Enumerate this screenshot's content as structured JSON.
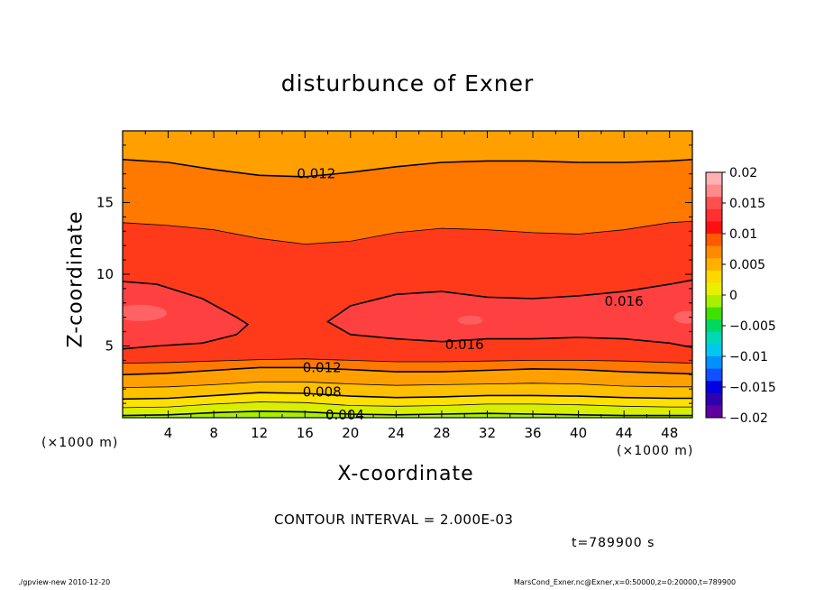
{
  "chart_data": {
    "type": "contour",
    "title": "disturbunce of Exner",
    "xlabel": "X-coordinate",
    "ylabel": "Z-coordinate",
    "x_unit": "(×1000 m)",
    "y_unit": "(×1000 m)",
    "xlim": [
      0,
      50
    ],
    "ylim": [
      0,
      20
    ],
    "x_ticks": [
      4,
      8,
      12,
      16,
      20,
      24,
      28,
      32,
      36,
      40,
      44,
      48
    ],
    "y_ticks": [
      5,
      10,
      15
    ],
    "contour_interval_text": "CONTOUR INTERVAL = 2.000E-03",
    "contour_labels": [
      {
        "value": "0.012",
        "x": 17,
        "z": 17.0
      },
      {
        "value": "0.016",
        "x": 44,
        "z": 8.1
      },
      {
        "value": "0.016",
        "x": 30,
        "z": 5.1
      },
      {
        "value": "0.012",
        "x": 17.5,
        "z": 3.5
      },
      {
        "value": "0.008",
        "x": 17.5,
        "z": 1.8
      },
      {
        "value": "0.004",
        "x": 19.5,
        "z": 0.2
      }
    ],
    "contours": [
      {
        "level": 0.004,
        "x": [
          0,
          4,
          8,
          12,
          16,
          20,
          24,
          28,
          32,
          36,
          40,
          44,
          48,
          50
        ],
        "z": [
          0.15,
          0.2,
          0.35,
          0.45,
          0.4,
          0.25,
          0.2,
          0.25,
          0.3,
          0.25,
          0.2,
          0.15,
          0.15,
          0.15
        ]
      },
      {
        "level": 0.006,
        "x": [
          0,
          4,
          8,
          12,
          16,
          20,
          24,
          28,
          32,
          36,
          40,
          44,
          48,
          50
        ],
        "z": [
          0.7,
          0.75,
          0.95,
          1.1,
          1.05,
          0.85,
          0.8,
          0.85,
          0.95,
          0.95,
          0.9,
          0.8,
          0.75,
          0.75
        ]
      },
      {
        "level": 0.008,
        "x": [
          0,
          4,
          8,
          12,
          16,
          20,
          24,
          28,
          32,
          36,
          40,
          44,
          48,
          50
        ],
        "z": [
          1.3,
          1.35,
          1.55,
          1.75,
          1.7,
          1.5,
          1.4,
          1.45,
          1.55,
          1.55,
          1.5,
          1.4,
          1.35,
          1.35
        ]
      },
      {
        "level": 0.01,
        "x": [
          0,
          4,
          8,
          12,
          16,
          20,
          24,
          28,
          32,
          36,
          40,
          44,
          48,
          50
        ],
        "z": [
          2.1,
          2.15,
          2.3,
          2.5,
          2.5,
          2.35,
          2.25,
          2.3,
          2.35,
          2.4,
          2.35,
          2.2,
          2.15,
          2.15
        ]
      },
      {
        "level": 0.012,
        "x": [
          0,
          4,
          8,
          12,
          16,
          20,
          24,
          28,
          32,
          36,
          40,
          44,
          48,
          50
        ],
        "z": [
          3.0,
          3.1,
          3.3,
          3.5,
          3.5,
          3.35,
          3.2,
          3.2,
          3.3,
          3.4,
          3.35,
          3.2,
          3.1,
          3.05
        ]
      },
      {
        "level": 0.014,
        "x": [
          0,
          4,
          8,
          12,
          16,
          20,
          24,
          28,
          32,
          36,
          40,
          44,
          48,
          50
        ],
        "z": [
          3.8,
          3.85,
          3.95,
          4.05,
          4.1,
          4.0,
          3.9,
          3.9,
          3.95,
          4.0,
          4.0,
          3.95,
          3.85,
          3.8
        ]
      },
      {
        "level": 0.014,
        "x": [
          0,
          4,
          8,
          12,
          16,
          20,
          24,
          28,
          32,
          36,
          40,
          44,
          48,
          50
        ],
        "z": [
          13.6,
          13.4,
          13.1,
          12.5,
          12.1,
          12.3,
          12.9,
          13.2,
          13.1,
          12.9,
          12.8,
          13.1,
          13.6,
          13.7
        ]
      },
      {
        "level": 0.012,
        "x": [
          0,
          4,
          8,
          12,
          16,
          20,
          24,
          28,
          32,
          36,
          40,
          44,
          48,
          50
        ],
        "z": [
          18.0,
          17.8,
          17.3,
          16.9,
          16.8,
          17.1,
          17.5,
          17.8,
          17.9,
          17.9,
          17.8,
          17.8,
          17.9,
          18.0
        ]
      }
    ],
    "closed_contours_016": [
      {
        "x": [
          0,
          3,
          7,
          10,
          11,
          10,
          7,
          3,
          0
        ],
        "z": [
          9.5,
          9.3,
          8.3,
          7.0,
          6.5,
          5.8,
          5.2,
          5.0,
          4.8
        ]
      },
      {
        "x": [
          50,
          48,
          44,
          40,
          36,
          32,
          28,
          24,
          20,
          18,
          20,
          24,
          28,
          32,
          36,
          40,
          44,
          48,
          50
        ],
        "z": [
          9.6,
          9.3,
          8.8,
          8.5,
          8.3,
          8.4,
          8.8,
          8.6,
          7.8,
          6.7,
          5.8,
          5.5,
          5.3,
          5.5,
          5.5,
          5.6,
          5.5,
          5.2,
          4.9
        ]
      }
    ],
    "colorbar": {
      "tick_labels": [
        "0.02",
        "0.015",
        "0.01",
        "0.005",
        "0",
        "−0.005",
        "−0.01",
        "−0.015",
        "−0.02"
      ],
      "colors": [
        "#ffb0b0",
        "#ff8a8a",
        "#ff5050",
        "#ff3030",
        "#ff1010",
        "#ff5a00",
        "#ff8a00",
        "#ffb000",
        "#ffd800",
        "#e8f000",
        "#a8f000",
        "#40e000",
        "#00d860",
        "#00d8b8",
        "#00c8f0",
        "#0090ff",
        "#1050ff",
        "#0000e0",
        "#3000b0",
        "#6000a0"
      ],
      "range": [
        -0.02,
        0.02
      ]
    },
    "fill_bands": [
      {
        "level": "lt_0.004",
        "color": "#a8f000"
      },
      {
        "level": "0.004-0.006",
        "color": "#d8f000"
      },
      {
        "level": "0.006-0.008",
        "color": "#ffe000"
      },
      {
        "level": "0.008-0.010",
        "color": "#ffc000"
      },
      {
        "level": "0.010-0.012",
        "color": "#ffa000"
      },
      {
        "level": "0.012-0.014",
        "color": "#ff7800"
      },
      {
        "level": "0.014-0.016",
        "color": "#ff3a1a"
      },
      {
        "level": "0.016-0.018",
        "color": "#ff4040"
      },
      {
        "level": "gt_0.018",
        "color": "#ff8080"
      }
    ]
  },
  "labels": {
    "title": "disturbunce of Exner",
    "xlabel": "X-coordinate",
    "ylabel": "Z-coordinate",
    "x_unit_left": "(×1000 m)",
    "x_unit_right": "(×1000 m)",
    "contour_interval": "CONTOUR INTERVAL = 2.000E-03",
    "time": "t=789900 s",
    "footer_left": "./gpview-new   2010-12-20",
    "footer_right": "MarsCond_Exner.nc@Exner,x=0:50000,z=0:20000,t=789900"
  }
}
